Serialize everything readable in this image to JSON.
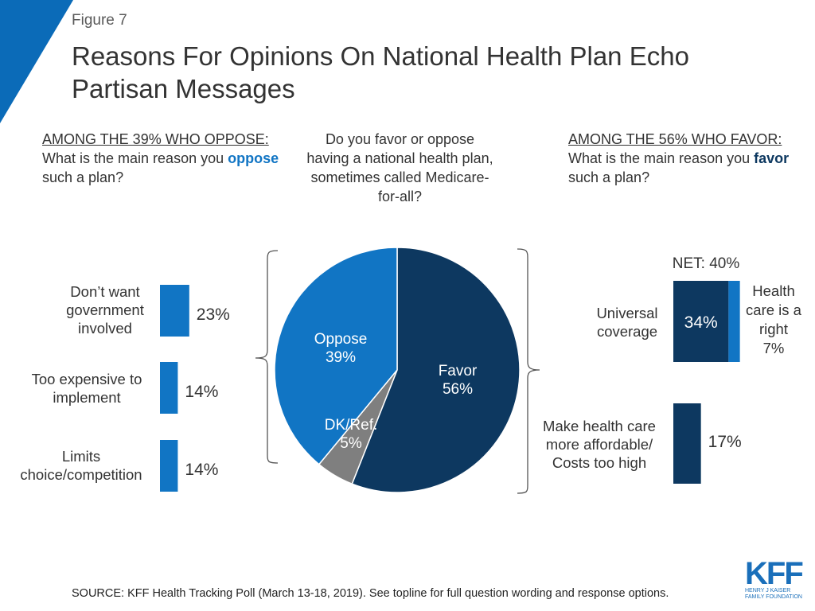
{
  "figure_label": "Figure 7",
  "title": "Reasons For Opinions On National Health Plan Echo Partisan Messages",
  "questions": {
    "left": {
      "underlined": "AMONG THE 39% WHO OPPOSE:",
      "text_before": " What is the main reason you ",
      "emphasis": "oppose",
      "text_after": " such a plan?"
    },
    "center": "Do you favor or oppose having a national health plan, sometimes called Medicare-for-all?",
    "right": {
      "underlined": "AMONG THE 56% WHO FAVOR:",
      "text_before": " What is the main reason you ",
      "emphasis": "favor",
      "text_after": " such a plan?"
    }
  },
  "colors": {
    "oppose": "#1175c4",
    "favor": "#0d3860",
    "dk": "#7f7f7f",
    "accent": "#0b6bb8",
    "bracket": "#555555"
  },
  "chart_data": [
    {
      "type": "pie",
      "title": "Do you favor or oppose having a national health plan, sometimes called Medicare-for-all?",
      "slices": [
        {
          "label": "Favor",
          "value": 56,
          "display": "56%",
          "color": "#0d3860"
        },
        {
          "label": "DK/Ref.",
          "value": 5,
          "display": "5%",
          "color": "#7f7f7f"
        },
        {
          "label": "Oppose",
          "value": 39,
          "display": "39%",
          "color": "#1175c4"
        }
      ]
    },
    {
      "type": "bar",
      "title": "AMONG THE 39% WHO OPPOSE: What is the main reason you oppose such a plan?",
      "orientation": "horizontal",
      "categories": [
        "Don’t want government involved",
        "Too expensive to implement",
        "Limits choice/competition"
      ],
      "values": [
        23,
        14,
        14
      ],
      "value_labels": [
        "23%",
        "14%",
        "14%"
      ],
      "color": "#1175c4",
      "xlim": [
        0,
        40
      ]
    },
    {
      "type": "bar",
      "title": "AMONG THE 56% WHO FAVOR: What is the main reason you favor such a plan?",
      "orientation": "horizontal",
      "stacked": true,
      "net_label": "NET: 40%",
      "bars": [
        {
          "category": "Universal coverage / Health care is a right",
          "segments": [
            {
              "label": "Universal coverage",
              "value": 34,
              "display": "34%",
              "color": "#0d3860"
            },
            {
              "label": "Health care is a right",
              "value": 7,
              "display": "7%",
              "color": "#1175c4"
            }
          ]
        },
        {
          "category": "Make health care more affordable/ Costs too high",
          "segments": [
            {
              "label": "Make health care more affordable/ Costs too high",
              "value": 17,
              "display": "17%",
              "color": "#0d3860"
            }
          ]
        }
      ],
      "xlim": [
        0,
        40
      ]
    }
  ],
  "footer": "SOURCE: KFF Health Tracking Poll (March 13-18, 2019). See topline for full question wording and response options.",
  "logo": {
    "mark": "KFF",
    "line1": "HENRY J KAISER",
    "line2": "FAMILY FOUNDATION"
  }
}
